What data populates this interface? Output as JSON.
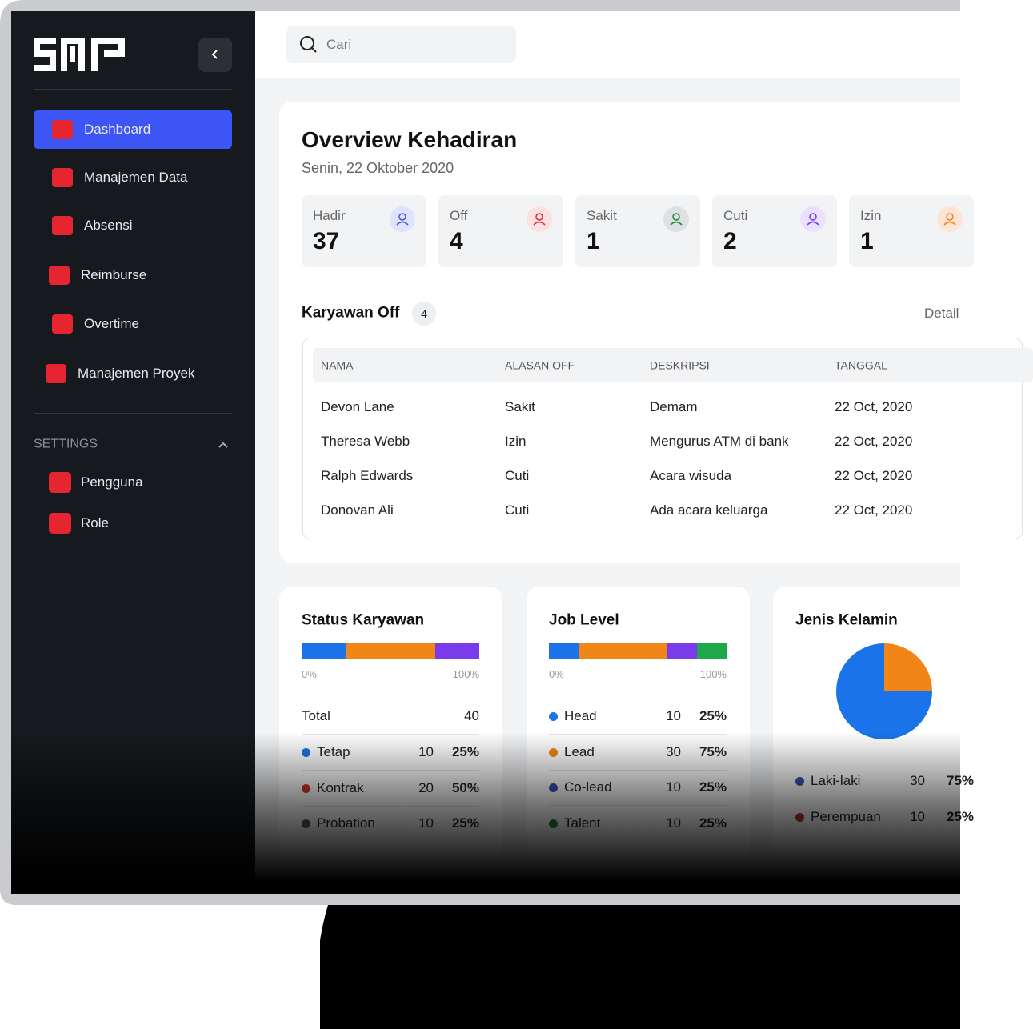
{
  "sidebar": {
    "nav": [
      "Dashboard",
      "Manajemen Data",
      "Absensi",
      "Reimburse",
      "Overtime",
      "Manajemen Proyek"
    ],
    "settings_title": "SETTINGS",
    "settings_items": [
      "Pengguna",
      "Role"
    ]
  },
  "search_placeholder": "Cari",
  "overview": {
    "title": "Overview Kehadiran",
    "date": "Senin, 22 Oktober 2020",
    "stats": [
      {
        "label": "Hadir",
        "value": 37
      },
      {
        "label": "Off",
        "value": 4
      },
      {
        "label": "Sakit",
        "value": 1
      },
      {
        "label": "Cuti",
        "value": 2
      },
      {
        "label": "Izin",
        "value": 1
      }
    ]
  },
  "off_table": {
    "title": "Karyawan Off",
    "count": 4,
    "detail": "Detail",
    "columns": [
      "NAMA",
      "ALASAN OFF",
      "DESKRIPSI",
      "TANGGAL"
    ],
    "rows": [
      [
        "Devon Lane",
        "Sakit",
        "Demam",
        "22 Oct, 2020"
      ],
      [
        "Theresa Webb",
        "Izin",
        "Mengurus ATM di bank",
        "22 Oct, 2020"
      ],
      [
        "Ralph Edwards",
        "Cuti",
        "Acara wisuda",
        "22 Oct, 2020"
      ],
      [
        "Donovan Ali",
        "Cuti",
        "Ada acara keluarga",
        "22 Oct, 2020"
      ]
    ]
  },
  "status": {
    "title": "Status Karyawan",
    "scale_min": "0%",
    "scale_max": "100%",
    "total_label": "Total",
    "total": 40,
    "rows": [
      {
        "name": "Tetap",
        "count": 10,
        "percent": "25%",
        "color": "#1a73e8",
        "dot": "#1a73e8"
      },
      {
        "name": "Kontrak",
        "count": 20,
        "percent": "50%",
        "color": "#f28518",
        "dot": "#d9362b"
      },
      {
        "name": "Probation",
        "count": 10,
        "percent": "25%",
        "color": "#7c3aed",
        "dot": "#555a60"
      }
    ]
  },
  "job_level": {
    "title": "Job Level",
    "scale_min": "0%",
    "scale_max": "100%",
    "rows": [
      {
        "name": "Head",
        "count": 10,
        "percent": "25%",
        "color": "#1a73e8",
        "dot": "#1a73e8"
      },
      {
        "name": "Lead",
        "count": 30,
        "percent": "75%",
        "color": "#f28518",
        "dot": "#f28518"
      },
      {
        "name": "Co-lead",
        "count": 10,
        "percent": "25%",
        "color": "#7c3aed",
        "dot": "#3f4fb8"
      },
      {
        "name": "Talent",
        "count": 10,
        "percent": "25%",
        "color": "#1fa84a",
        "dot": "#1f8a3c"
      }
    ]
  },
  "gender": {
    "title": "Jenis Kelamin",
    "rows": [
      {
        "name": "Laki-laki",
        "count": 30,
        "percent": "75%",
        "color": "#1a73e8",
        "dot": "#3f4fb8"
      },
      {
        "name": "Perempuan",
        "count": 10,
        "percent": "25%",
        "color": "#f28518",
        "dot": "#b8352b"
      }
    ]
  }
}
